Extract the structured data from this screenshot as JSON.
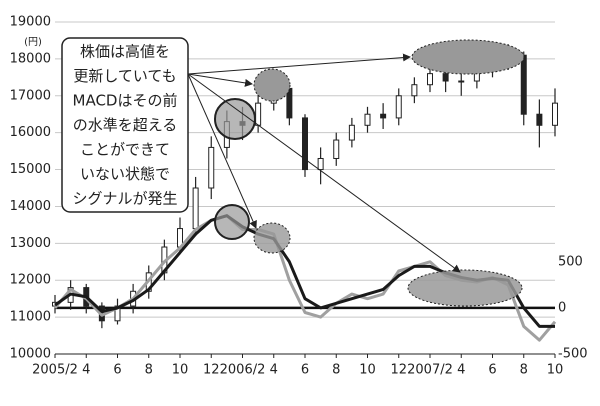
{
  "chart_data": {
    "type": "candlestick",
    "y_unit": "(円)",
    "annotation": [
      "株価は高値を",
      "更新していても",
      "MACDはその前",
      "の水準を超える",
      "ことができて",
      "いない状態で",
      "シグナルが発生"
    ],
    "x": [
      0,
      1,
      2,
      3,
      4,
      5,
      6,
      7,
      8,
      9,
      10,
      11,
      12,
      13,
      14,
      15,
      16,
      17,
      18,
      19,
      20,
      21,
      22,
      23,
      24,
      25,
      26,
      27,
      28,
      29,
      30,
      31,
      32
    ],
    "open": [
      11300,
      11400,
      11800,
      11300,
      10900,
      11300,
      11700,
      12200,
      12900,
      13400,
      14500,
      15600,
      16300,
      16200,
      16800,
      17200,
      16400,
      15000,
      15300,
      15800,
      16200,
      16500,
      16400,
      17000,
      17300,
      17600,
      17400,
      17400,
      17700,
      18000,
      18100,
      16500,
      16200
    ],
    "close": [
      11400,
      11800,
      11300,
      10900,
      11300,
      11700,
      12200,
      12900,
      13400,
      14500,
      15600,
      16300,
      16200,
      16800,
      17200,
      16400,
      15000,
      15300,
      15800,
      16200,
      16500,
      16400,
      17000,
      17300,
      17600,
      17400,
      17400,
      17700,
      18000,
      18100,
      16500,
      16200,
      16800
    ],
    "high": [
      11600,
      12000,
      11900,
      11400,
      11500,
      11900,
      12400,
      13100,
      13700,
      14800,
      15900,
      16600,
      16700,
      17100,
      17600,
      17300,
      16500,
      15600,
      16000,
      16400,
      16700,
      16800,
      17200,
      17500,
      17900,
      17800,
      17700,
      18000,
      18300,
      18400,
      18200,
      16900,
      17200
    ],
    "low": [
      11100,
      11200,
      11100,
      10700,
      10800,
      11100,
      11500,
      12000,
      12700,
      13200,
      14200,
      15300,
      15800,
      16000,
      16600,
      16200,
      14800,
      14600,
      15100,
      15600,
      16000,
      16100,
      16200,
      16800,
      17100,
      17100,
      17000,
      17200,
      17500,
      17700,
      16200,
      15600,
      15900
    ],
    "series": [
      {
        "color": "#a0a0a0",
        "axis": "y2",
        "values": [
          0,
          200,
          100,
          -80,
          0,
          100,
          300,
          500,
          650,
          850,
          950,
          1000,
          850,
          850,
          800,
          300,
          -50,
          -100,
          50,
          150,
          100,
          150,
          400,
          450,
          500,
          350,
          300,
          280,
          330,
          250,
          -200,
          -350,
          -150
        ]
      },
      {
        "color": "#1a1a1a",
        "axis": "y2",
        "values": [
          30,
          150,
          120,
          -40,
          0,
          80,
          200,
          400,
          600,
          800,
          950,
          1000,
          880,
          800,
          750,
          500,
          100,
          0,
          50,
          100,
          150,
          200,
          350,
          450,
          450,
          380,
          330,
          300,
          320,
          300,
          0,
          -200,
          -200
        ]
      }
    ],
    "xlim": [
      0,
      32
    ],
    "xticks": [
      {
        "value": 0,
        "label": "2005/2"
      },
      {
        "value": 2,
        "label": "4"
      },
      {
        "value": 4,
        "label": "6"
      },
      {
        "value": 6,
        "label": "8"
      },
      {
        "value": 8,
        "label": "10"
      },
      {
        "value": 10,
        "label": "12"
      },
      {
        "value": 12,
        "label": "2006/2"
      },
      {
        "value": 14,
        "label": "4"
      },
      {
        "value": 16,
        "label": "6"
      },
      {
        "value": 18,
        "label": "8"
      },
      {
        "value": 20,
        "label": "10"
      },
      {
        "value": 22,
        "label": "12"
      },
      {
        "value": 24,
        "label": "2007/2"
      },
      {
        "value": 26,
        "label": "4"
      },
      {
        "value": 28,
        "label": "6"
      },
      {
        "value": 30,
        "label": "8"
      },
      {
        "value": 32,
        "label": "10"
      }
    ],
    "ylim": [
      10000,
      19000
    ],
    "yticks": [
      10000,
      11000,
      12000,
      13000,
      14000,
      15000,
      16000,
      17000,
      18000,
      19000
    ],
    "y2lim": [
      -500,
      3100
    ],
    "y2ticks": [
      -500,
      0,
      500
    ],
    "grid": true
  }
}
